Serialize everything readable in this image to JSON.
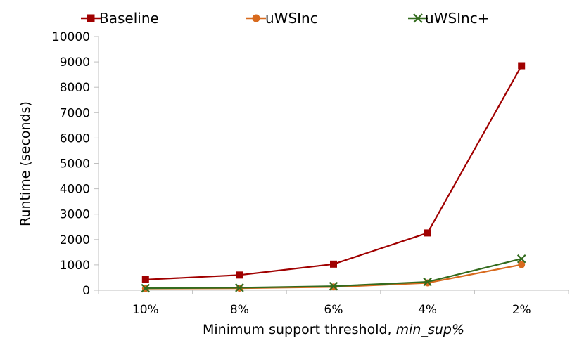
{
  "chart_data": {
    "type": "line",
    "categories": [
      "10%",
      "8%",
      "6%",
      "4%",
      "2%"
    ],
    "series": [
      {
        "name": "Baseline",
        "values": [
          420,
          600,
          1030,
          2260,
          8850
        ],
        "color": "#a00000",
        "marker": "square"
      },
      {
        "name": "uWSInc",
        "values": [
          70,
          80,
          130,
          290,
          1010
        ],
        "color": "#d86a1e",
        "marker": "circle"
      },
      {
        "name": "uWSInc+",
        "values": [
          80,
          100,
          160,
          330,
          1240
        ],
        "color": "#336b1e",
        "marker": "x"
      }
    ],
    "xlabel_prefix": "Minimum support threshold, ",
    "xlabel_emph": "min_sup%",
    "ylabel": "Runtime (seconds)",
    "yticks": [
      "0",
      "1000",
      "2000",
      "3000",
      "4000",
      "5000",
      "6000",
      "7000",
      "8000",
      "9000",
      "10000"
    ],
    "ylim": [
      0,
      10000
    ],
    "grid": false,
    "legend_position": "top"
  }
}
